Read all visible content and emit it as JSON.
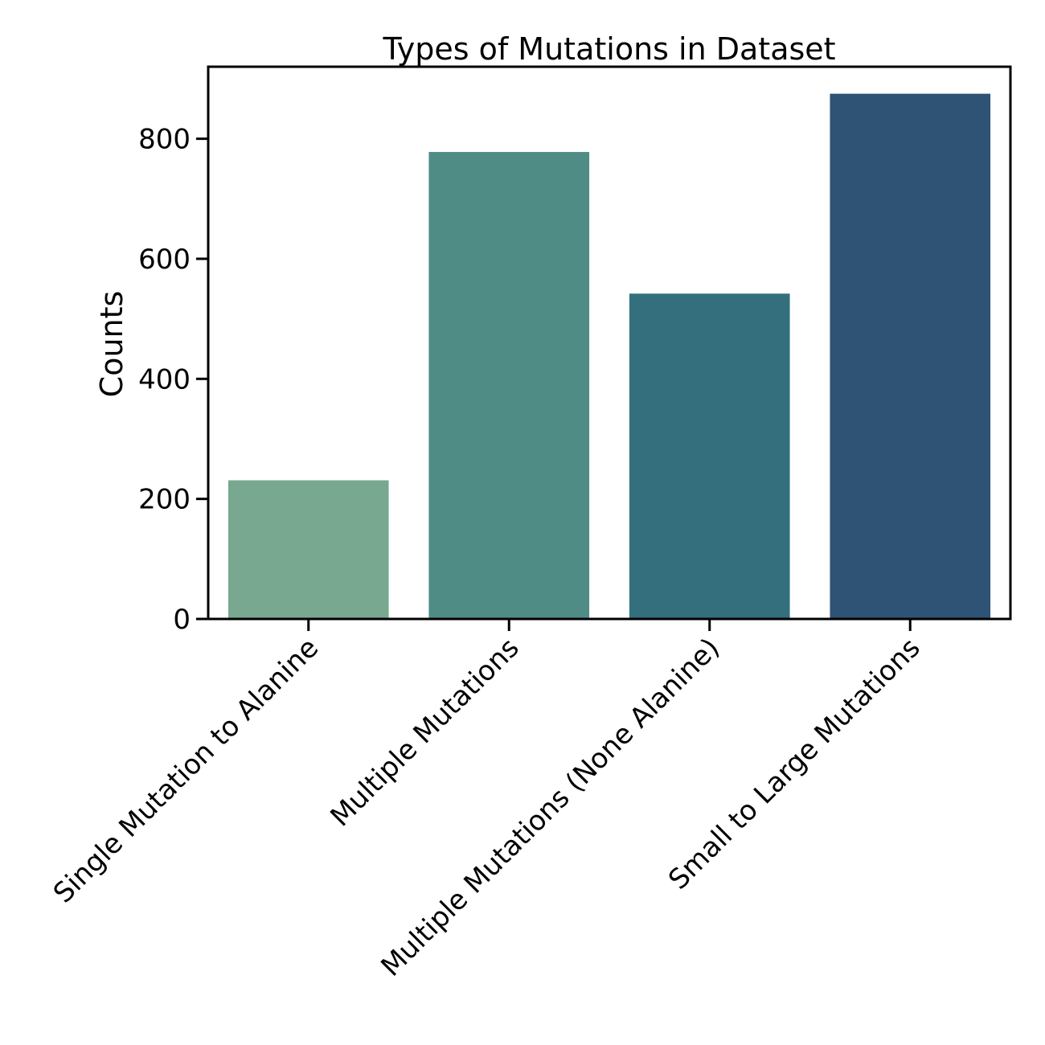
{
  "chart_data": {
    "type": "bar",
    "title": "Types of Mutations in Dataset",
    "xlabel": "",
    "ylabel": "Counts",
    "categories": [
      "Single Mutation to Alanine",
      "Multiple Mutations",
      "Multiple Mutations (None Alanine)",
      "Small to Large Mutations"
    ],
    "values": [
      231,
      778,
      542,
      875
    ],
    "colors": [
      "#78a890",
      "#508c86",
      "#336f7c",
      "#2e5375"
    ],
    "ylim": [
      0,
      920
    ],
    "yticks": [
      0,
      200,
      400,
      600,
      800
    ],
    "grid": false
  }
}
